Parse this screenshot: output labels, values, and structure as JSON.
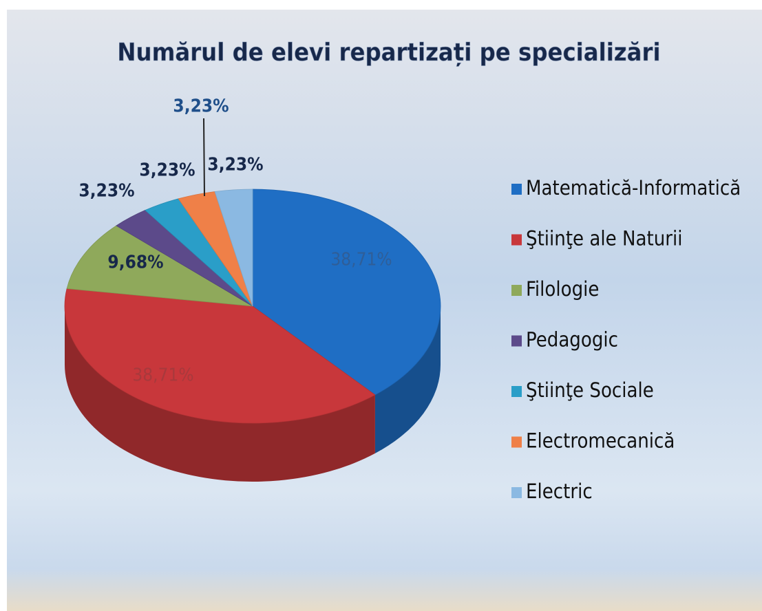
{
  "chart_data": {
    "type": "pie",
    "title": "Numărul de elevi repartizați pe specializări",
    "categories": [
      "Matematică-Informatică",
      "Ştiinţe ale Naturii",
      "Filologie",
      "Pedagogic",
      "Ştiinţe Sociale",
      "Electromecanică",
      "Electric"
    ],
    "values": [
      38.71,
      38.71,
      9.68,
      3.23,
      3.23,
      3.23,
      3.23
    ],
    "value_labels": [
      "38,71%",
      "38,71%",
      "9,68%",
      "3,23%",
      "3,23%",
      "3,23%",
      "3,23%"
    ],
    "colors": [
      "#1f6ec4",
      "#c8373b",
      "#8fa95b",
      "#5c4a8a",
      "#2a9ec8",
      "#ef8048",
      "#8bb9e2"
    ],
    "legend": "right"
  }
}
